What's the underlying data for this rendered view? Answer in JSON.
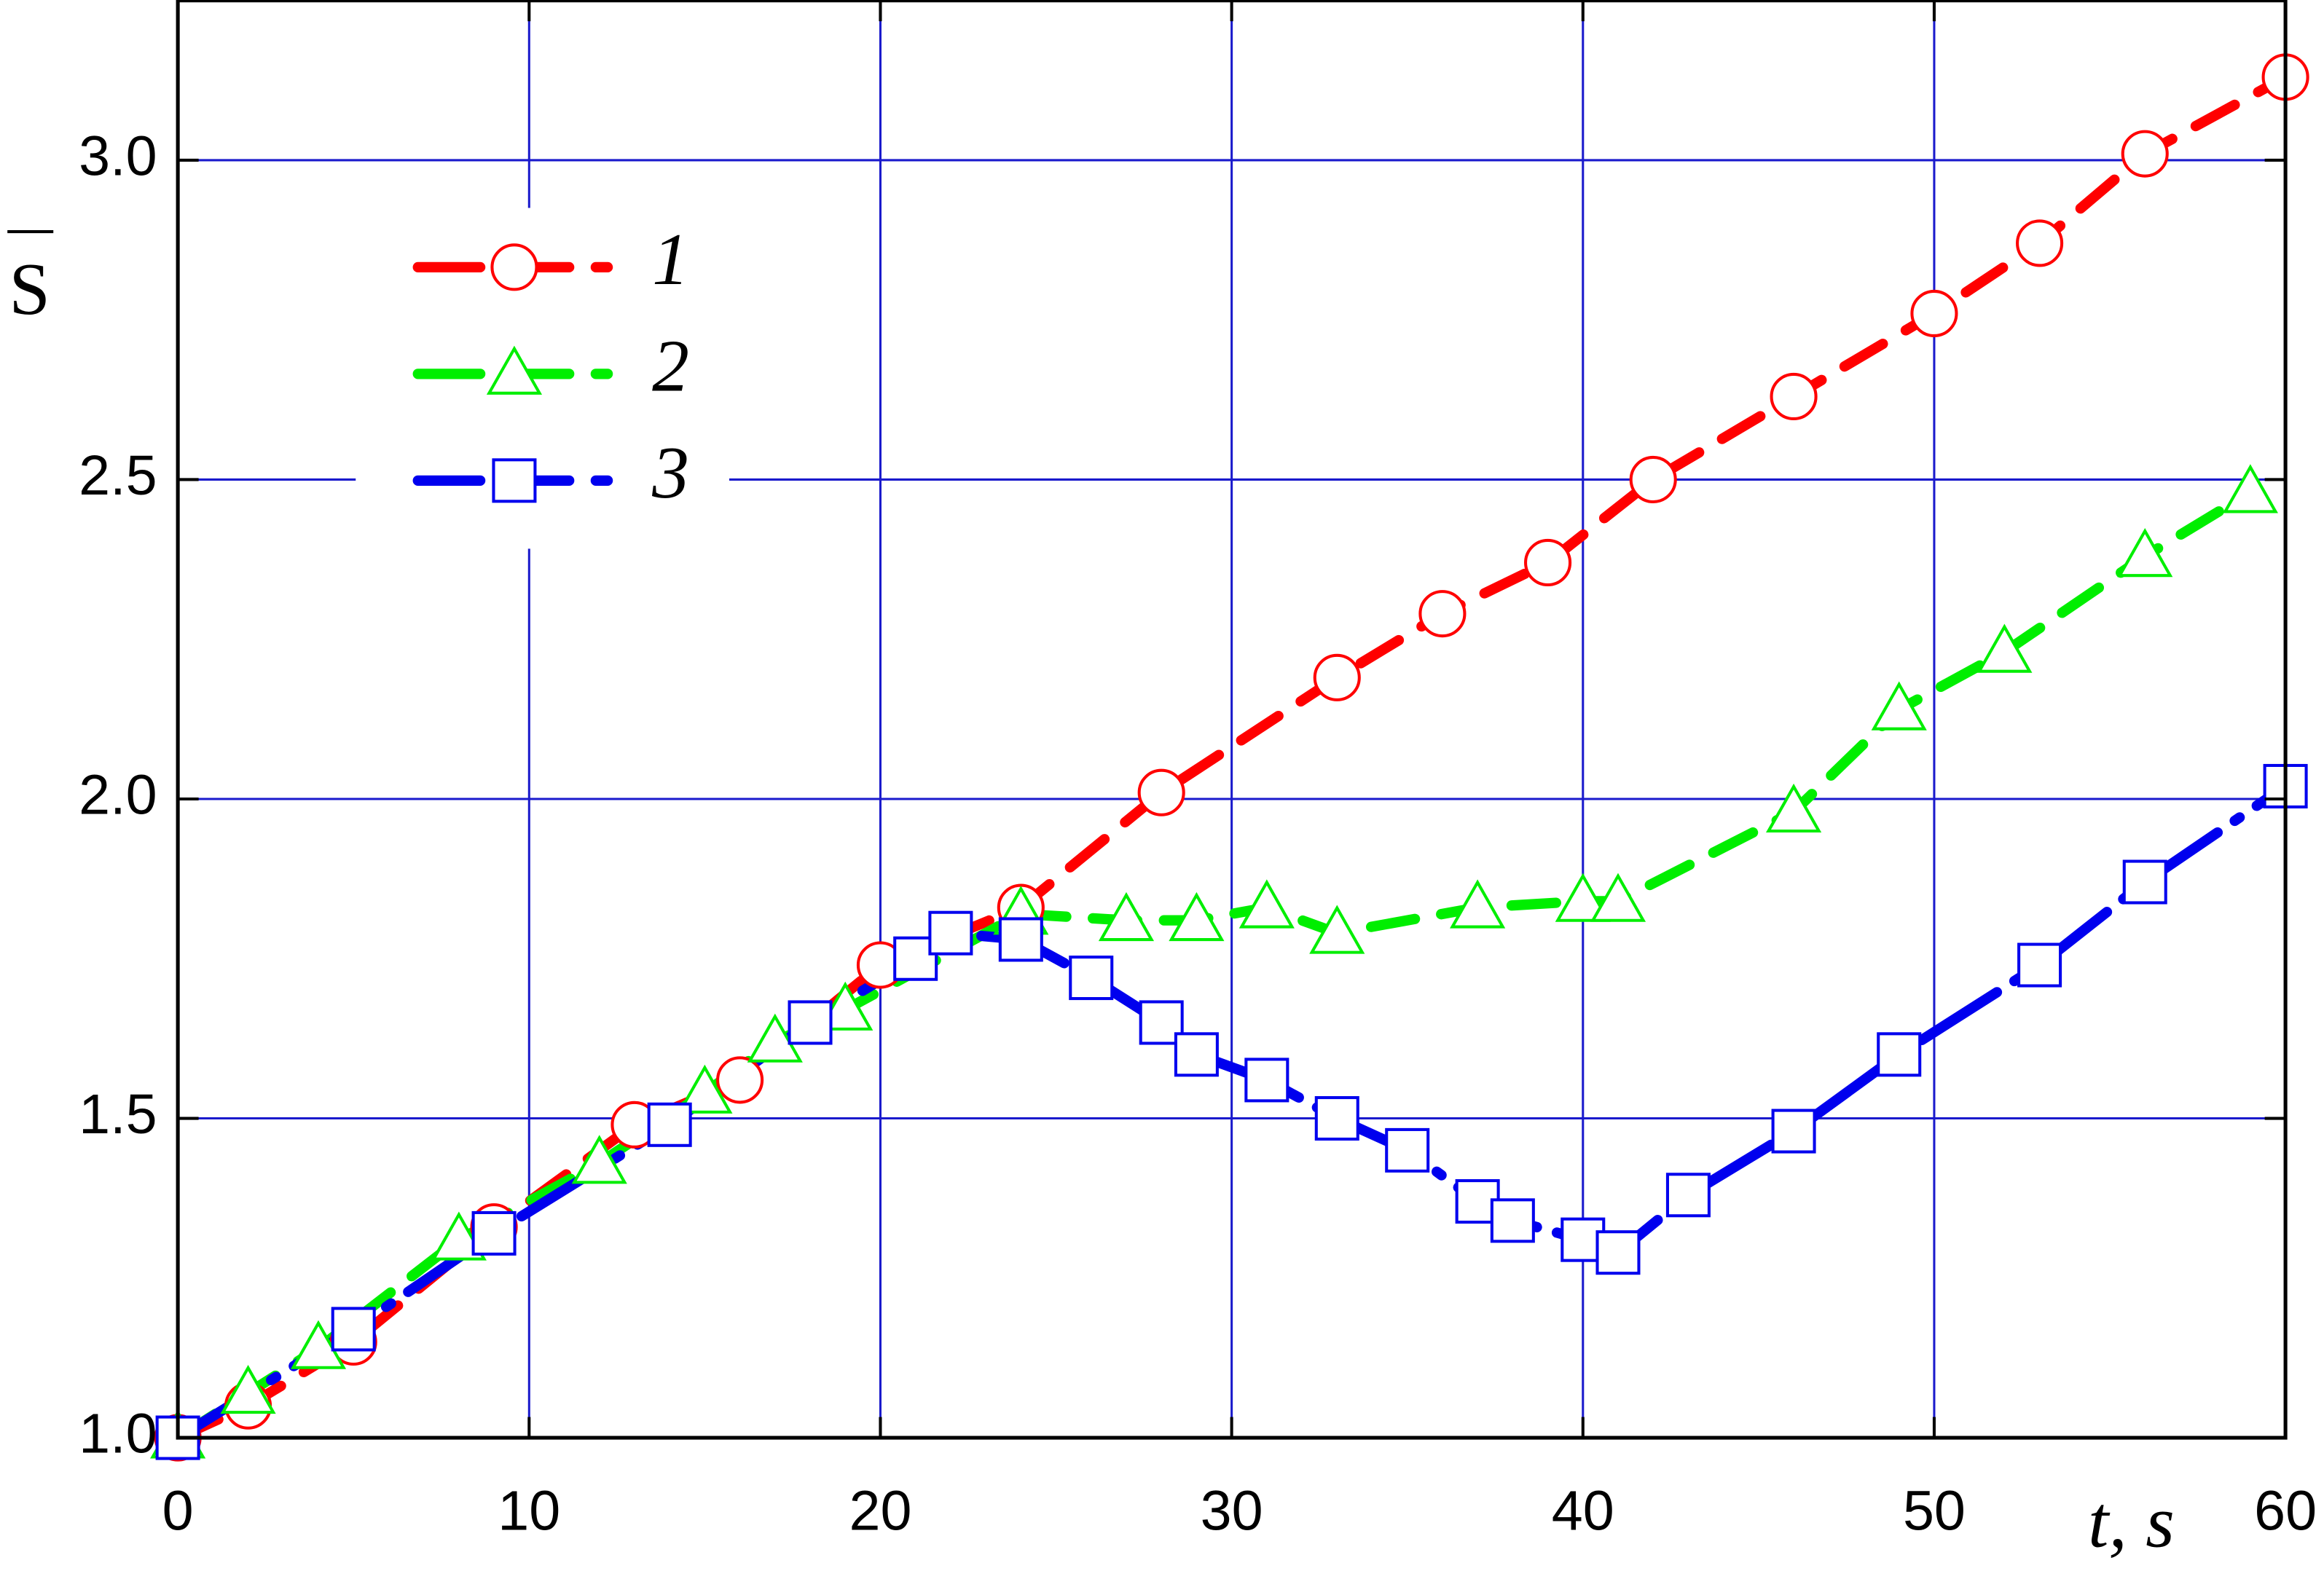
{
  "chart_data": {
    "type": "line",
    "x_label": "t, s",
    "y_label": "S",
    "xlim": [
      0,
      60
    ],
    "ylim": [
      1.0,
      3.25
    ],
    "xticks": [
      0,
      10,
      20,
      30,
      40,
      50,
      60
    ],
    "yticks": [
      {
        "value": 1.0,
        "label": "1.0"
      },
      1.5,
      {
        "value": 2.0,
        "label": "2.0"
      },
      2.5,
      {
        "value": 3.0,
        "label": "3.0"
      }
    ],
    "grid": true,
    "grid_color": "#1a1acc",
    "legend": "upper left",
    "series": [
      {
        "name": "1",
        "color": "#ff0000",
        "marker": "circle",
        "x": [
          0,
          2,
          5,
          9,
          13,
          16,
          20,
          24,
          28,
          33,
          36,
          39,
          42,
          46,
          50,
          53,
          56,
          60
        ],
        "values": [
          1.0,
          1.05,
          1.15,
          1.33,
          1.49,
          1.56,
          1.74,
          1.83,
          2.01,
          2.19,
          2.29,
          2.37,
          2.5,
          2.63,
          2.76,
          2.87,
          3.01,
          3.13
        ]
      },
      {
        "name": "2",
        "color": "#00ee00",
        "marker": "triangle",
        "x": [
          0,
          2,
          4,
          8,
          12,
          15,
          17,
          19,
          24,
          27,
          29,
          31,
          33,
          37,
          40,
          41,
          46,
          49,
          52,
          56,
          59
        ],
        "values": [
          1.0,
          1.07,
          1.14,
          1.31,
          1.43,
          1.54,
          1.62,
          1.67,
          1.82,
          1.81,
          1.81,
          1.83,
          1.79,
          1.83,
          1.84,
          1.84,
          1.98,
          2.14,
          2.23,
          2.38,
          2.48
        ]
      },
      {
        "name": "3",
        "color": "#0000ee",
        "marker": "square",
        "x": [
          0,
          5,
          9,
          14,
          18,
          21,
          22,
          24,
          26,
          28,
          29,
          31,
          33,
          35,
          37,
          38,
          40,
          41,
          43,
          46,
          49,
          53,
          56,
          60
        ],
        "values": [
          1.0,
          1.17,
          1.32,
          1.49,
          1.65,
          1.75,
          1.79,
          1.78,
          1.72,
          1.65,
          1.6,
          1.56,
          1.5,
          1.45,
          1.37,
          1.34,
          1.31,
          1.29,
          1.38,
          1.48,
          1.6,
          1.74,
          1.87,
          2.02
        ]
      }
    ]
  }
}
